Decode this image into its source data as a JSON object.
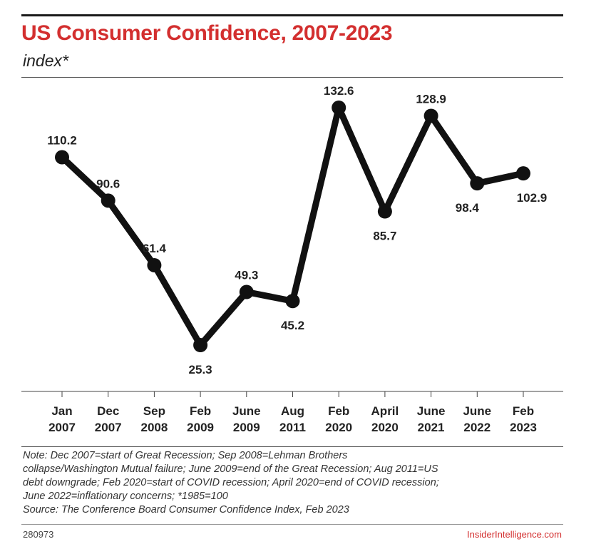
{
  "header": {
    "title": "US Consumer Confidence, 2007-2023",
    "subtitle": "index*"
  },
  "chart_data": {
    "type": "line",
    "title": "US Consumer Confidence, 2007-2023",
    "subtitle": "index*",
    "categories": [
      [
        "Jan",
        "2007"
      ],
      [
        "Dec",
        "2007"
      ],
      [
        "Sep",
        "2008"
      ],
      [
        "Feb",
        "2009"
      ],
      [
        "June",
        "2009"
      ],
      [
        "Aug",
        "2011"
      ],
      [
        "Feb",
        "2020"
      ],
      [
        "April",
        "2020"
      ],
      [
        "June",
        "2021"
      ],
      [
        "June",
        "2022"
      ],
      [
        "Feb",
        "2023"
      ]
    ],
    "series": [
      {
        "values": [
          110.2,
          90.6,
          61.4,
          25.3,
          49.3,
          45.2,
          132.6,
          85.7,
          128.9,
          98.4,
          102.9
        ]
      }
    ],
    "value_labels": [
      "110.2",
      "90.6",
      "61.4",
      "25.3",
      "49.3",
      "45.2",
      "132.6",
      "85.7",
      "128.9",
      "98.4",
      "102.9"
    ],
    "label_positions": [
      "above",
      "above",
      "above",
      "below",
      "above",
      "below",
      "above",
      "below",
      "above",
      "below",
      "below"
    ],
    "ylim": [
      25.3,
      132.6
    ],
    "grid": false,
    "legend": "none",
    "line_color": "#111111"
  },
  "footer": {
    "notes": [
      "Note: Dec 2007=start of Great Recession; Sep 2008=Lehman Brothers",
      "collapse/Washington Mutual failure; June 2009=end of the Great Recession; Aug 2011=US",
      "debt downgrade; Feb 2020=start of COVID recession; April 2020=end of COVID recession;",
      "June 2022=inflationary concerns; *1985=100"
    ],
    "source": "Source: The Conference Board Consumer Confidence Index, Feb 2023",
    "chart_id": "280973",
    "brand": "InsiderIntelligence.com"
  }
}
